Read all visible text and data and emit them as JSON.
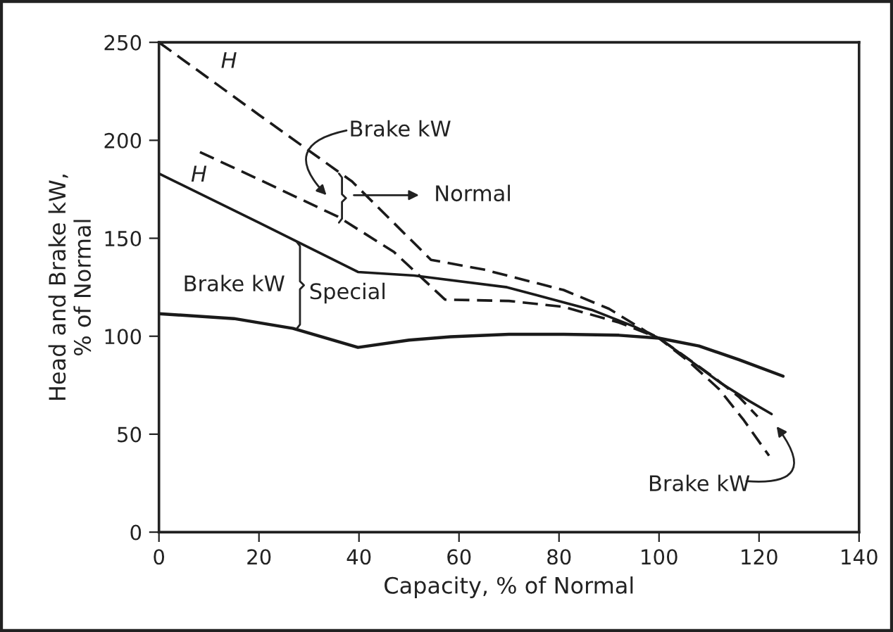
{
  "chart_data": {
    "type": "line",
    "xlabel": "Capacity, % of Normal",
    "ylabel": "Head and Brake kW,\n% of Normal",
    "series": [
      {
        "color": "#1a1a1a",
        "line_style": "dashed",
        "x": [
          0,
          20,
          38.6,
          54.4,
          65,
          80.9,
          90,
          97.7,
          100,
          105,
          111,
          116,
          119.7
        ],
        "values": [
          250,
          213,
          179,
          139,
          134,
          123.6,
          114,
          102,
          99,
          90,
          79,
          69,
          59
        ]
      },
      {
        "color": "#1a1a1a",
        "line_style": "dashed",
        "x": [
          8.2,
          20,
          35.8,
          47,
          57.2,
          70,
          80.9,
          92,
          100,
          106,
          112,
          117,
          122
        ],
        "values": [
          194,
          180,
          161,
          143,
          118.7,
          118,
          115,
          107,
          99,
          87,
          73,
          57,
          39
        ]
      },
      {
        "color": "#1a1a1a",
        "line_style": "solid",
        "x": [
          0,
          20,
          39.8,
          51,
          69.6,
          86.5,
          95,
          100,
          106,
          112.4,
          118,
          122.5
        ],
        "values": [
          183,
          158,
          132.8,
          131,
          125,
          113.5,
          105,
          99,
          88,
          76,
          67,
          60.3
        ]
      },
      {
        "color": "#1a1a1a",
        "line_style": "solid",
        "x": [
          0,
          15,
          26.8,
          39.8,
          50,
          58.3,
          70,
          80.9,
          92,
          100,
          108,
          116,
          124.8
        ],
        "values": [
          111.5,
          109,
          104,
          94.3,
          98,
          99.7,
          101,
          101,
          100.5,
          99,
          95,
          88,
          79.6
        ]
      }
    ],
    "xlim": [
      0,
      140
    ],
    "xticks": [
      0,
      20,
      40,
      60,
      80,
      100,
      120,
      140
    ],
    "ylim": [
      0,
      250
    ],
    "yticks": [
      0,
      50,
      100,
      150,
      200,
      250
    ],
    "grid": false,
    "marker": "none",
    "annotations": [
      "H",
      "H",
      "Brake kW",
      "Normal",
      "Brake kW",
      "Special",
      "Brake kW"
    ]
  }
}
